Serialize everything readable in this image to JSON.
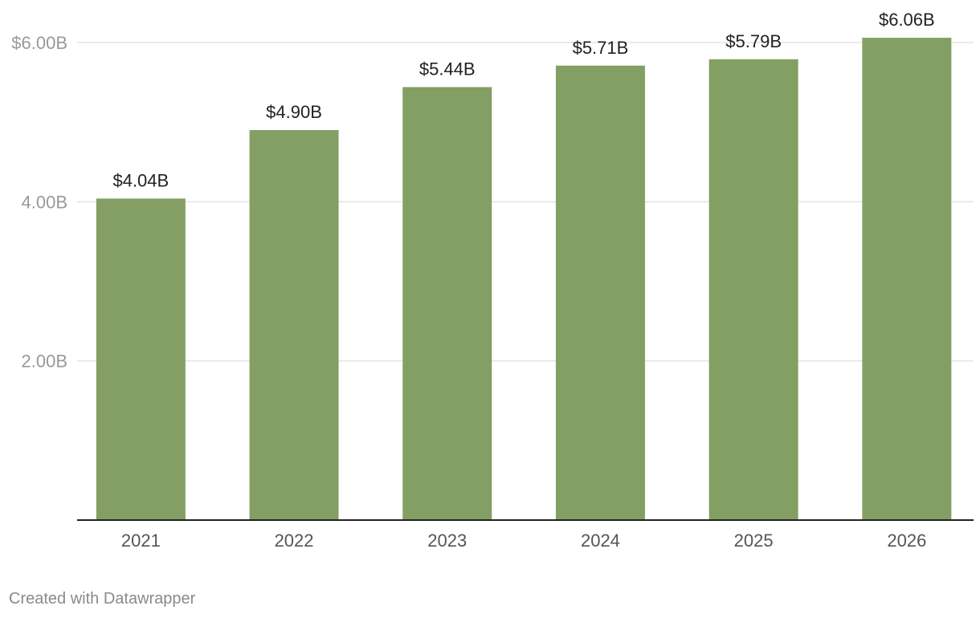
{
  "chart_data": {
    "type": "bar",
    "title": "",
    "xlabel": "",
    "ylabel": "",
    "categories": [
      "2021",
      "2022",
      "2023",
      "2024",
      "2025",
      "2026"
    ],
    "values": [
      4.04,
      4.9,
      5.44,
      5.71,
      5.79,
      6.06
    ],
    "data_labels": [
      "$4.04B",
      "$4.90B",
      "$5.44B",
      "$5.71B",
      "$5.79B",
      "$6.06B"
    ],
    "ylim": [
      0,
      6.0
    ],
    "y_ticks": [
      {
        "value": 2,
        "label": "2.00B"
      },
      {
        "value": 4,
        "label": "4.00B"
      },
      {
        "value": 6,
        "label": "$6.00B"
      }
    ],
    "grid": true,
    "legend": "none",
    "bar_color": "#839f63",
    "gridline_color": "#e3e3e3",
    "axis_color": "#222222",
    "tick_label_color": "#999999",
    "category_label_color": "#555555",
    "value_label_color": "#222222"
  },
  "footer": {
    "credit": "Created with Datawrapper"
  }
}
